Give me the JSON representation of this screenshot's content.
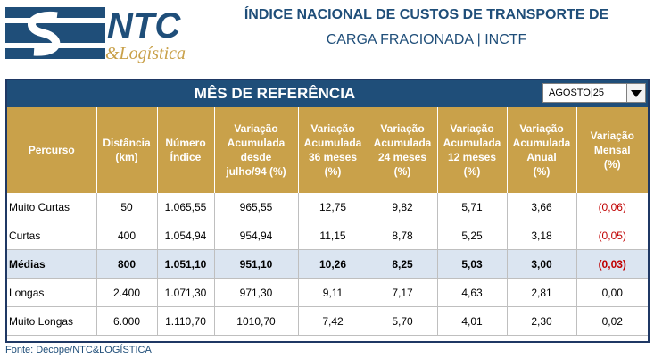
{
  "logo": {
    "brand": "NTC",
    "sub": "&Logística"
  },
  "header": {
    "title_line1": "ÍNDICE NACIONAL DE CUSTOS DE TRANSPORTE DE",
    "title_line2": "CARGA FRACIONADA | INCTF"
  },
  "reference": {
    "label": "MÊS DE REFERÊNCIA",
    "selected": "AGOSTO|25"
  },
  "table": {
    "headers": [
      [
        "Percurso"
      ],
      [
        "Distância",
        "(km)"
      ],
      [
        "Número",
        "Índice"
      ],
      [
        "Variação",
        "Acumulada",
        "desde",
        "julho/94   (%)"
      ],
      [
        "Variação",
        "Acumulada",
        "36 meses",
        "(%)"
      ],
      [
        "Variação",
        "Acumulada",
        "24 meses",
        "(%)"
      ],
      [
        "Variação",
        "Acumulada",
        "12 meses",
        "(%)"
      ],
      [
        "Variação",
        "Acumulada",
        "Anual",
        "(%)"
      ],
      [
        "Variação",
        "Mensal",
        "(%)"
      ]
    ],
    "rows": [
      [
        "Muito Curtas",
        "50",
        "1.065,55",
        "965,55",
        "12,75",
        "9,82",
        "5,71",
        "3,66",
        "(0,06)"
      ],
      [
        "Curtas",
        "400",
        "1.054,94",
        "954,94",
        "11,15",
        "8,78",
        "5,25",
        "3,18",
        "(0,05)"
      ],
      [
        "Médias",
        "800",
        "1.051,10",
        "951,10",
        "10,26",
        "8,25",
        "5,03",
        "3,00",
        "(0,03)"
      ],
      [
        "Longas",
        "2.400",
        "1.071,30",
        "971,30",
        "9,11",
        "7,17",
        "4,63",
        "2,81",
        "0,00"
      ],
      [
        "Muito Longas",
        "6.000",
        "1.110,70",
        "1010,70",
        "7,42",
        "5,70",
        "4,01",
        "2,30",
        "0,02"
      ]
    ]
  },
  "footer": "Fonte: Decope/NTC&LOGÍSTICA",
  "colors": {
    "navy": "#1f4e79",
    "gold": "#c9a14a",
    "highlight_row": "#dbe5f1",
    "negative": "#c00000"
  }
}
